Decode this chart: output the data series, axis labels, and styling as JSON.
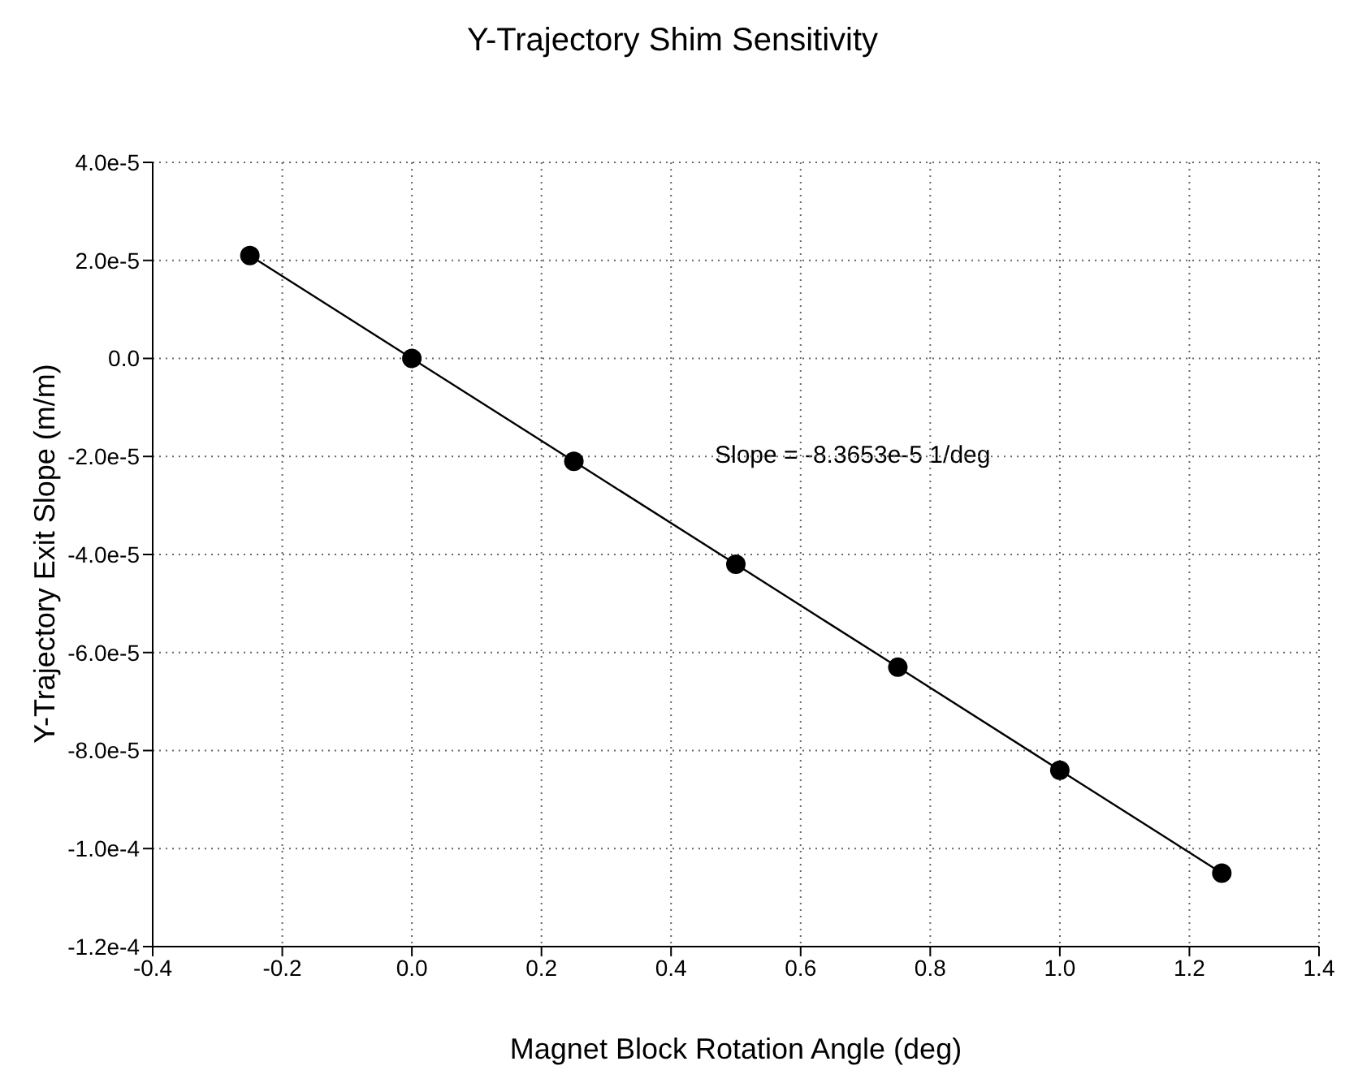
{
  "chart_data": {
    "type": "line",
    "title": "Y-Trajectory Shim Sensitivity",
    "xlabel": "Magnet Block Rotation Angle (deg)",
    "ylabel": "Y-Trajectory Exit Slope (m/m)",
    "x": [
      -0.25,
      0,
      0.25,
      0.5,
      0.75,
      1.0,
      1.25
    ],
    "series": [
      {
        "color": "#000000",
        "values": [
          2.1e-05,
          0,
          -2.1e-05,
          -4.2e-05,
          -6.3e-05,
          -8.4e-05,
          -0.000105
        ]
      }
    ],
    "marker": "circle",
    "line_style": "solid",
    "grid": true,
    "xlim": [
      -0.4,
      1.4
    ],
    "xticks": [
      -0.4,
      -0.2,
      {
        "value": 0,
        "label": "0.0"
      },
      0.2,
      0.4,
      0.6,
      0.8,
      {
        "value": 1,
        "label": "1.0"
      },
      1.2,
      1.4
    ],
    "ylim": [
      -0.00012,
      4e-05
    ],
    "yticks": [
      {
        "value": -0.00012,
        "label": "-1.2e-4"
      },
      {
        "value": -0.0001,
        "label": "-1.0e-4"
      },
      {
        "value": -8e-05,
        "label": "-8.0e-5"
      },
      {
        "value": -6e-05,
        "label": "-6.0e-5"
      },
      {
        "value": -4e-05,
        "label": "-4.0e-5"
      },
      {
        "value": -2e-05,
        "label": "-2.0e-5"
      },
      {
        "value": 0,
        "label": "0.0"
      },
      {
        "value": 2e-05,
        "label": "2.0e-5"
      },
      {
        "value": 4e-05,
        "label": "4.0e-5"
      }
    ],
    "annotations": [
      "Slope = -8.3653e-5 1/deg"
    ]
  }
}
